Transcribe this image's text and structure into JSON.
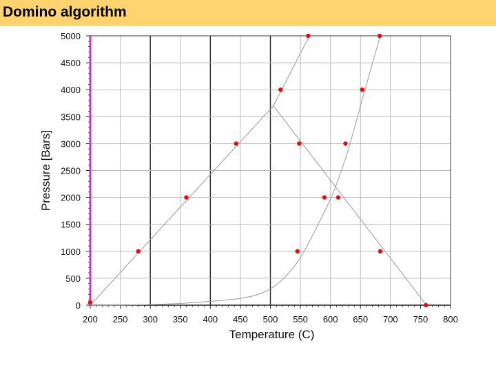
{
  "slide": {
    "title": "Domino algorithm"
  },
  "colors": {
    "title_bg": "#ffd36e",
    "point": "#e01010",
    "highlight_axis": "#cc33cc",
    "curve": "#999999"
  },
  "chart_data": {
    "type": "scatter",
    "title": "",
    "xlabel": "Temperature (C)",
    "ylabel": "Pressure [Bars]",
    "xlim": [
      200,
      800
    ],
    "ylim": [
      0,
      5000
    ],
    "xticks": [
      200,
      250,
      300,
      350,
      400,
      450,
      500,
      550,
      600,
      650,
      700,
      750,
      800
    ],
    "yticks": [
      0,
      500,
      1000,
      1500,
      2000,
      2500,
      3000,
      3500,
      4000,
      4500,
      5000
    ],
    "grid": true,
    "dark_vertical_lines": [
      300,
      400,
      500
    ],
    "curves": [
      {
        "points": [
          [
            200,
            0
          ],
          [
            505,
            3700
          ],
          [
            565,
            5000
          ]
        ]
      },
      {
        "points": [
          [
            505,
            3700
          ],
          [
            760,
            0
          ]
        ]
      },
      {
        "points": [
          [
            200,
            0
          ],
          [
            300,
            10
          ],
          [
            400,
            70
          ],
          [
            470,
            170
          ],
          [
            510,
            380
          ],
          [
            545,
            800
          ],
          [
            575,
            1400
          ],
          [
            605,
            2100
          ],
          [
            630,
            2900
          ],
          [
            655,
            3900
          ],
          [
            683,
            5000
          ]
        ]
      }
    ],
    "points": [
      {
        "x": 200,
        "y": 50
      },
      {
        "x": 280,
        "y": 1000
      },
      {
        "x": 360,
        "y": 2000
      },
      {
        "x": 443,
        "y": 3000
      },
      {
        "x": 517,
        "y": 4000
      },
      {
        "x": 563,
        "y": 5000
      },
      {
        "x": 548,
        "y": 3000
      },
      {
        "x": 590,
        "y": 2000
      },
      {
        "x": 545,
        "y": 1000
      },
      {
        "x": 613,
        "y": 2000
      },
      {
        "x": 625,
        "y": 3000
      },
      {
        "x": 653,
        "y": 4000
      },
      {
        "x": 682,
        "y": 5000
      },
      {
        "x": 683,
        "y": 1000
      },
      {
        "x": 759,
        "y": 0
      }
    ]
  }
}
